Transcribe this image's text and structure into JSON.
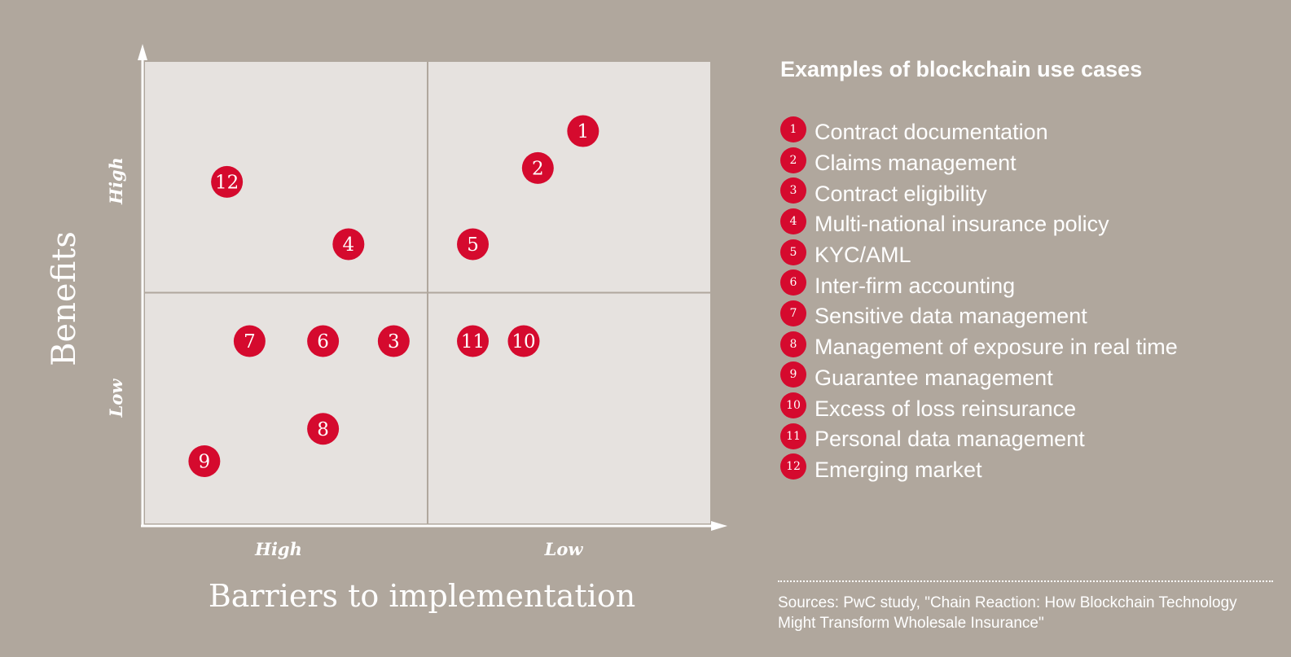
{
  "chart_data": {
    "type": "scatter",
    "xlabel": "Barriers to implementation",
    "ylabel": "Benefits",
    "x_ticks": [
      "High",
      "Low"
    ],
    "y_ticks": [
      "High",
      "Low"
    ],
    "xlim": [
      0,
      10
    ],
    "ylim": [
      0,
      10
    ],
    "quadrant_dividers": {
      "x": 5,
      "y": 5
    },
    "x_axis_direction": "left = High barriers, right = Low barriers",
    "points": [
      {
        "id": "1",
        "x": 7.75,
        "y": 8.5
      },
      {
        "id": "2",
        "x": 6.95,
        "y": 7.7
      },
      {
        "id": "3",
        "x": 4.4,
        "y": 3.95
      },
      {
        "id": "4",
        "x": 3.6,
        "y": 6.05
      },
      {
        "id": "5",
        "x": 5.8,
        "y": 6.05
      },
      {
        "id": "6",
        "x": 3.15,
        "y": 3.95
      },
      {
        "id": "7",
        "x": 1.85,
        "y": 3.95
      },
      {
        "id": "8",
        "x": 3.15,
        "y": 2.05
      },
      {
        "id": "9",
        "x": 1.05,
        "y": 1.35
      },
      {
        "id": "10",
        "x": 6.7,
        "y": 3.95
      },
      {
        "id": "11",
        "x": 5.8,
        "y": 3.95
      },
      {
        "id": "12",
        "x": 1.45,
        "y": 7.4
      }
    ],
    "colors": {
      "background": "#b0a79d",
      "plot_area": "#e6e2df",
      "marker": "#d50a2e",
      "divider": "#b0a79d",
      "axis": "#ffffff"
    }
  },
  "legend": {
    "title": "Examples of blockchain use cases",
    "items": [
      {
        "num": "1",
        "label": "Contract documentation"
      },
      {
        "num": "2",
        "label": "Claims management"
      },
      {
        "num": "3",
        "label": "Contract eligibility"
      },
      {
        "num": "4",
        "label": "Multi-national insurance policy"
      },
      {
        "num": "5",
        "label": "KYC/AML"
      },
      {
        "num": "6",
        "label": "Inter-firm accounting"
      },
      {
        "num": "7",
        "label": "Sensitive data management"
      },
      {
        "num": "8",
        "label": "Management of exposure in real time"
      },
      {
        "num": "9",
        "label": "Guarantee management"
      },
      {
        "num": "10",
        "label": "Excess of loss reinsurance"
      },
      {
        "num": "11",
        "label": "Personal data management"
      },
      {
        "num": "12",
        "label": "Emerging market"
      }
    ]
  },
  "sources": "Sources: PwC study, \"Chain Reaction: How Blockchain Technology Might Transform Wholesale Insurance\""
}
